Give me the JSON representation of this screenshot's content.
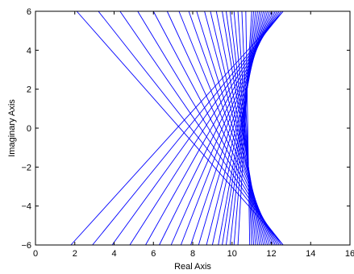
{
  "chart_data": {
    "type": "line",
    "title": "",
    "xlabel": "Real Axis",
    "ylabel": "Imaginary Axis",
    "xlim": [
      0,
      16
    ],
    "ylim": [
      -6,
      6
    ],
    "xticks": [
      "0",
      "2",
      "4",
      "6",
      "8",
      "10",
      "12",
      "14",
      "16"
    ],
    "yticks": [
      "−6",
      "−4",
      "−2",
      "0",
      "2",
      "4",
      "6"
    ],
    "grid": false,
    "legend": "none",
    "line_color": "#0000ff",
    "description_of_series": "family of straight lines whose envelope is a curve with vertex near (10, 0)",
    "series": [
      {
        "x": [
          2.1,
          12.6
        ],
        "y": [
          6,
          -6
        ]
      },
      {
        "x": [
          3.2,
          12.6
        ],
        "y": [
          6,
          -6
        ]
      },
      {
        "x": [
          4.3,
          12.5
        ],
        "y": [
          6,
          -6
        ]
      },
      {
        "x": [
          5.2,
          12.4
        ],
        "y": [
          6,
          -6
        ]
      },
      {
        "x": [
          6.0,
          12.3
        ],
        "y": [
          6,
          -6
        ]
      },
      {
        "x": [
          6.7,
          12.2
        ],
        "y": [
          6,
          -6
        ]
      },
      {
        "x": [
          7.3,
          12.1
        ],
        "y": [
          6,
          -6
        ]
      },
      {
        "x": [
          7.8,
          12.0
        ],
        "y": [
          6,
          -6
        ]
      },
      {
        "x": [
          8.2,
          11.9
        ],
        "y": [
          6,
          -6
        ]
      },
      {
        "x": [
          8.6,
          11.8
        ],
        "y": [
          6,
          -6
        ]
      },
      {
        "x": [
          8.9,
          11.7
        ],
        "y": [
          6,
          -6
        ]
      },
      {
        "x": [
          9.2,
          11.6
        ],
        "y": [
          6,
          -6
        ]
      },
      {
        "x": [
          9.5,
          11.5
        ],
        "y": [
          6,
          -6
        ]
      },
      {
        "x": [
          9.7,
          11.4
        ],
        "y": [
          6,
          -6
        ]
      },
      {
        "x": [
          9.9,
          11.3
        ],
        "y": [
          6,
          -6
        ]
      },
      {
        "x": [
          10.1,
          11.2
        ],
        "y": [
          6,
          -6
        ]
      },
      {
        "x": [
          10.3,
          11.1
        ],
        "y": [
          6,
          -6
        ]
      },
      {
        "x": [
          10.5,
          11.0
        ],
        "y": [
          6,
          -6
        ]
      },
      {
        "x": [
          10.7,
          10.9
        ],
        "y": [
          6,
          -6
        ]
      },
      {
        "x": [
          1.8,
          12.6
        ],
        "y": [
          -6,
          6
        ]
      },
      {
        "x": [
          2.9,
          12.6
        ],
        "y": [
          -6,
          6
        ]
      },
      {
        "x": [
          3.9,
          12.5
        ],
        "y": [
          -6,
          6
        ]
      },
      {
        "x": [
          4.8,
          12.4
        ],
        "y": [
          -6,
          6
        ]
      },
      {
        "x": [
          5.6,
          12.3
        ],
        "y": [
          -6,
          6
        ]
      },
      {
        "x": [
          6.3,
          12.2
        ],
        "y": [
          -6,
          6
        ]
      },
      {
        "x": [
          6.9,
          12.1
        ],
        "y": [
          -6,
          6
        ]
      },
      {
        "x": [
          7.4,
          12.0
        ],
        "y": [
          -6,
          6
        ]
      },
      {
        "x": [
          7.9,
          11.9
        ],
        "y": [
          -6,
          6
        ]
      },
      {
        "x": [
          8.3,
          11.8
        ],
        "y": [
          -6,
          6
        ]
      },
      {
        "x": [
          8.7,
          11.7
        ],
        "y": [
          -6,
          6
        ]
      },
      {
        "x": [
          9.0,
          11.6
        ],
        "y": [
          -6,
          6
        ]
      },
      {
        "x": [
          9.3,
          11.5
        ],
        "y": [
          -6,
          6
        ]
      },
      {
        "x": [
          9.5,
          11.4
        ],
        "y": [
          -6,
          6
        ]
      },
      {
        "x": [
          9.7,
          11.3
        ],
        "y": [
          -6,
          6
        ]
      },
      {
        "x": [
          9.9,
          11.2
        ],
        "y": [
          -6,
          6
        ]
      },
      {
        "x": [
          10.1,
          11.1
        ],
        "y": [
          -6,
          6
        ]
      },
      {
        "x": [
          10.3,
          11.0
        ],
        "y": [
          -6,
          6
        ]
      }
    ]
  }
}
